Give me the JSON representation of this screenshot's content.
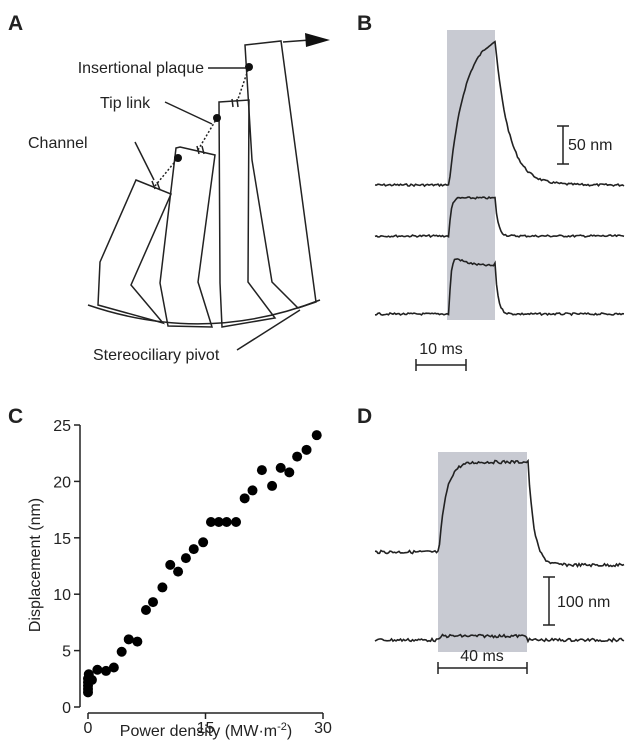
{
  "panels": {
    "a": {
      "letter": "A",
      "labels": [
        "Insertional plaque",
        "Tip link",
        "Channel",
        "Stereociliary pivot"
      ]
    },
    "b": {
      "letter": "B",
      "scale_y": "50 nm",
      "scale_x": "10 ms"
    },
    "d": {
      "letter": "D",
      "scale_y": "100 nm",
      "scale_x": "40 ms"
    }
  },
  "chart_data": {
    "type": "scatter",
    "letter": "C",
    "xlabel": [
      "Power density (MW·m",
      "-2",
      ")"
    ],
    "ylabel": "Displacement (nm)",
    "x": [
      0,
      0,
      0,
      0,
      0,
      0.1,
      0.5,
      1.2,
      2.3,
      3.3,
      4.3,
      5.2,
      6.3,
      7.4,
      8.3,
      9.5,
      10.5,
      11.5,
      12.5,
      13.5,
      14.7,
      15.7,
      16.7,
      17.7,
      18.9,
      20,
      21,
      22.2,
      23.5,
      24.6,
      25.7,
      26.7,
      27.9,
      29.2
    ],
    "y": [
      1.3,
      1.6,
      1.9,
      2.2,
      2.5,
      2.9,
      2.4,
      3.3,
      3.2,
      3.5,
      4.9,
      6,
      5.8,
      8.6,
      9.3,
      10.6,
      12.6,
      12,
      13.2,
      14,
      14.6,
      16.4,
      16.4,
      16.4,
      16.4,
      18.5,
      19.2,
      21,
      19.6,
      21.2,
      20.8,
      22.2,
      22.8,
      24.1
    ],
    "color": "#000000",
    "xlim": [
      0,
      30
    ],
    "xticks": [
      0,
      15,
      30
    ],
    "ylim": [
      0,
      25
    ],
    "yticks": [
      0,
      5,
      10,
      15,
      20,
      25
    ]
  }
}
